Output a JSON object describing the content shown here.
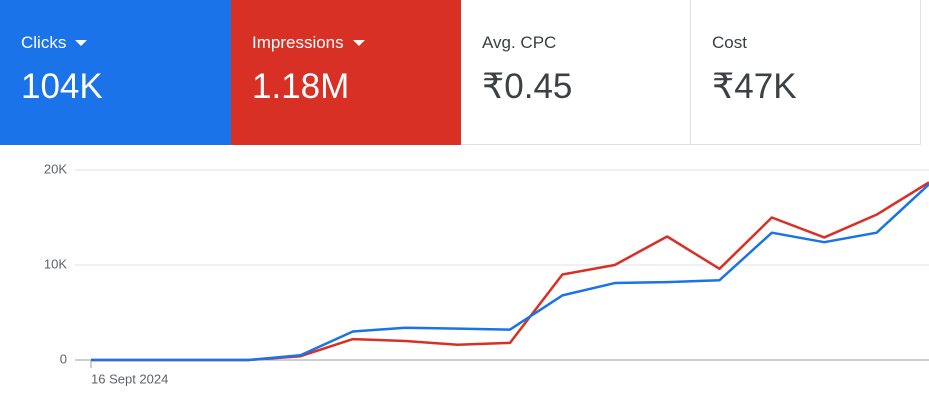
{
  "metrics": [
    {
      "label": "Clicks",
      "value": "104K"
    },
    {
      "label": "Impressions",
      "value": "1.18M"
    },
    {
      "label": "Avg. CPC",
      "value": "₹0.45"
    },
    {
      "label": "Cost",
      "value": "₹47K"
    }
  ],
  "chart_data": {
    "type": "line",
    "categories": [
      "16 Sept 2024",
      null,
      null,
      null,
      null,
      null,
      null,
      null,
      null,
      null,
      null,
      null,
      null,
      null,
      null,
      null,
      null
    ],
    "series": [
      {
        "name": "Clicks",
        "color": "#1a73e8",
        "values": [
          0,
          0,
          0,
          0,
          500,
          3000,
          3400,
          3300,
          3200,
          6800,
          8100,
          8200,
          8400,
          13400,
          12400,
          13400,
          18500
        ]
      },
      {
        "name": "Impressions",
        "color": "#d93025",
        "values": [
          0,
          0,
          0,
          0,
          400,
          2200,
          2000,
          1600,
          1800,
          9000,
          10000,
          13000,
          9600,
          15000,
          12900,
          15300,
          18700
        ]
      }
    ],
    "ylim": [
      0,
      20000
    ],
    "yticks": [
      {
        "value": 0,
        "label": "0"
      },
      {
        "value": 10000,
        "label": "10K"
      },
      {
        "value": 20000,
        "label": "20K"
      }
    ],
    "grid": true
  }
}
